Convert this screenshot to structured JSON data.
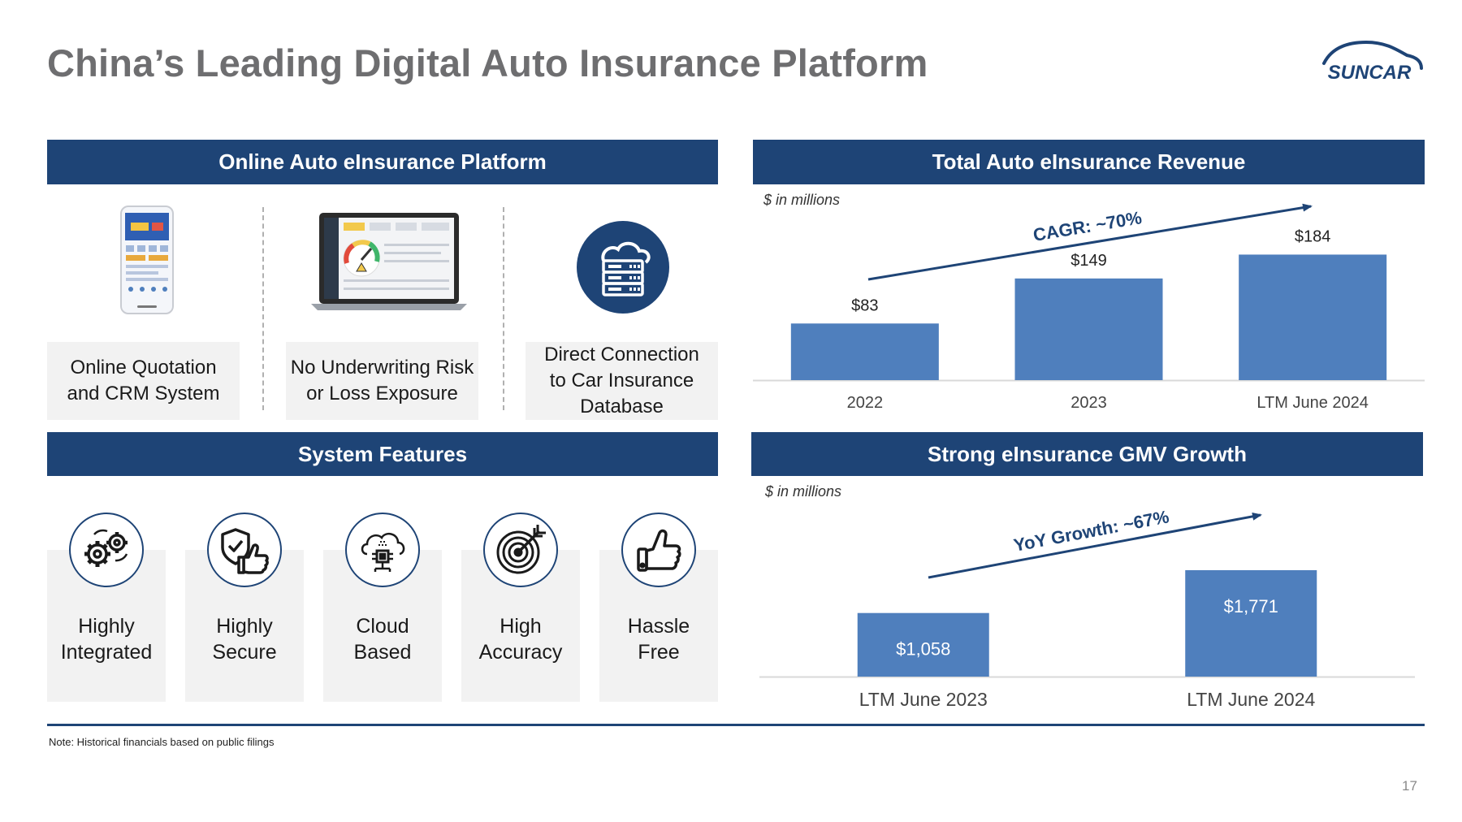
{
  "title": "China’s Leading Digital Auto Insurance Platform",
  "logo_text": "SUNCAR",
  "platform": {
    "header": "Online Auto eInsurance Platform",
    "items": [
      {
        "label_line1": "Online Quotation",
        "label_line2": "and CRM System",
        "icon": "mobile-app-icon"
      },
      {
        "label_line1": "No Underwriting Risk",
        "label_line2": "or Loss Exposure",
        "icon": "laptop-dashboard-icon"
      },
      {
        "label_line1": "Direct Connection",
        "label_line2": "to Car Insurance",
        "label_line3": "Database",
        "icon": "cloud-server-icon"
      }
    ]
  },
  "features": {
    "header": "System Features",
    "items": [
      {
        "line1": "Highly",
        "line2": "Integrated",
        "icon": "gears-icon"
      },
      {
        "line1": "Highly",
        "line2": "Secure",
        "icon": "shield-thumbs-up-icon"
      },
      {
        "line1": "Cloud",
        "line2": "Based",
        "icon": "cloud-chip-icon"
      },
      {
        "line1": "High",
        "line2": "Accuracy",
        "icon": "target-icon"
      },
      {
        "line1": "Hassle",
        "line2": "Free",
        "icon": "thumbs-up-icon"
      }
    ]
  },
  "revenue": {
    "header": "Total Auto eInsurance Revenue",
    "unit": "$ in millions",
    "annotation": "CAGR: ~70%"
  },
  "gmv": {
    "header": "Strong eInsurance GMV Growth",
    "unit": "$ in millions",
    "annotation": "YoY Growth: ~67%"
  },
  "chart_data": [
    {
      "type": "bar",
      "title": "Total Auto eInsurance Revenue",
      "categories": [
        "2022",
        "2023",
        "LTM June 2024"
      ],
      "values": [
        83,
        149,
        184
      ],
      "value_labels": [
        "$83",
        "$149",
        "$184"
      ],
      "unit": "$ in millions",
      "annotation": "CAGR: ~70%",
      "color": "#4f7fbd",
      "ylim": [
        0,
        200
      ]
    },
    {
      "type": "bar",
      "title": "Strong eInsurance GMV Growth",
      "categories": [
        "LTM June 2023",
        "LTM June 2024"
      ],
      "values": [
        1058,
        1771
      ],
      "value_labels": [
        "$1,058",
        "$1,771"
      ],
      "unit": "$ in millions",
      "annotation": "YoY Growth: ~67%",
      "color": "#4f7fbd",
      "ylim": [
        0,
        2000
      ]
    }
  ],
  "colors": {
    "header_bg": "#1e4476",
    "bar": "#4f7fbd",
    "title": "#6e6e70",
    "box_bg": "#f2f2f2"
  },
  "note": "Note: Historical financials based on public filings",
  "page_number": "17"
}
